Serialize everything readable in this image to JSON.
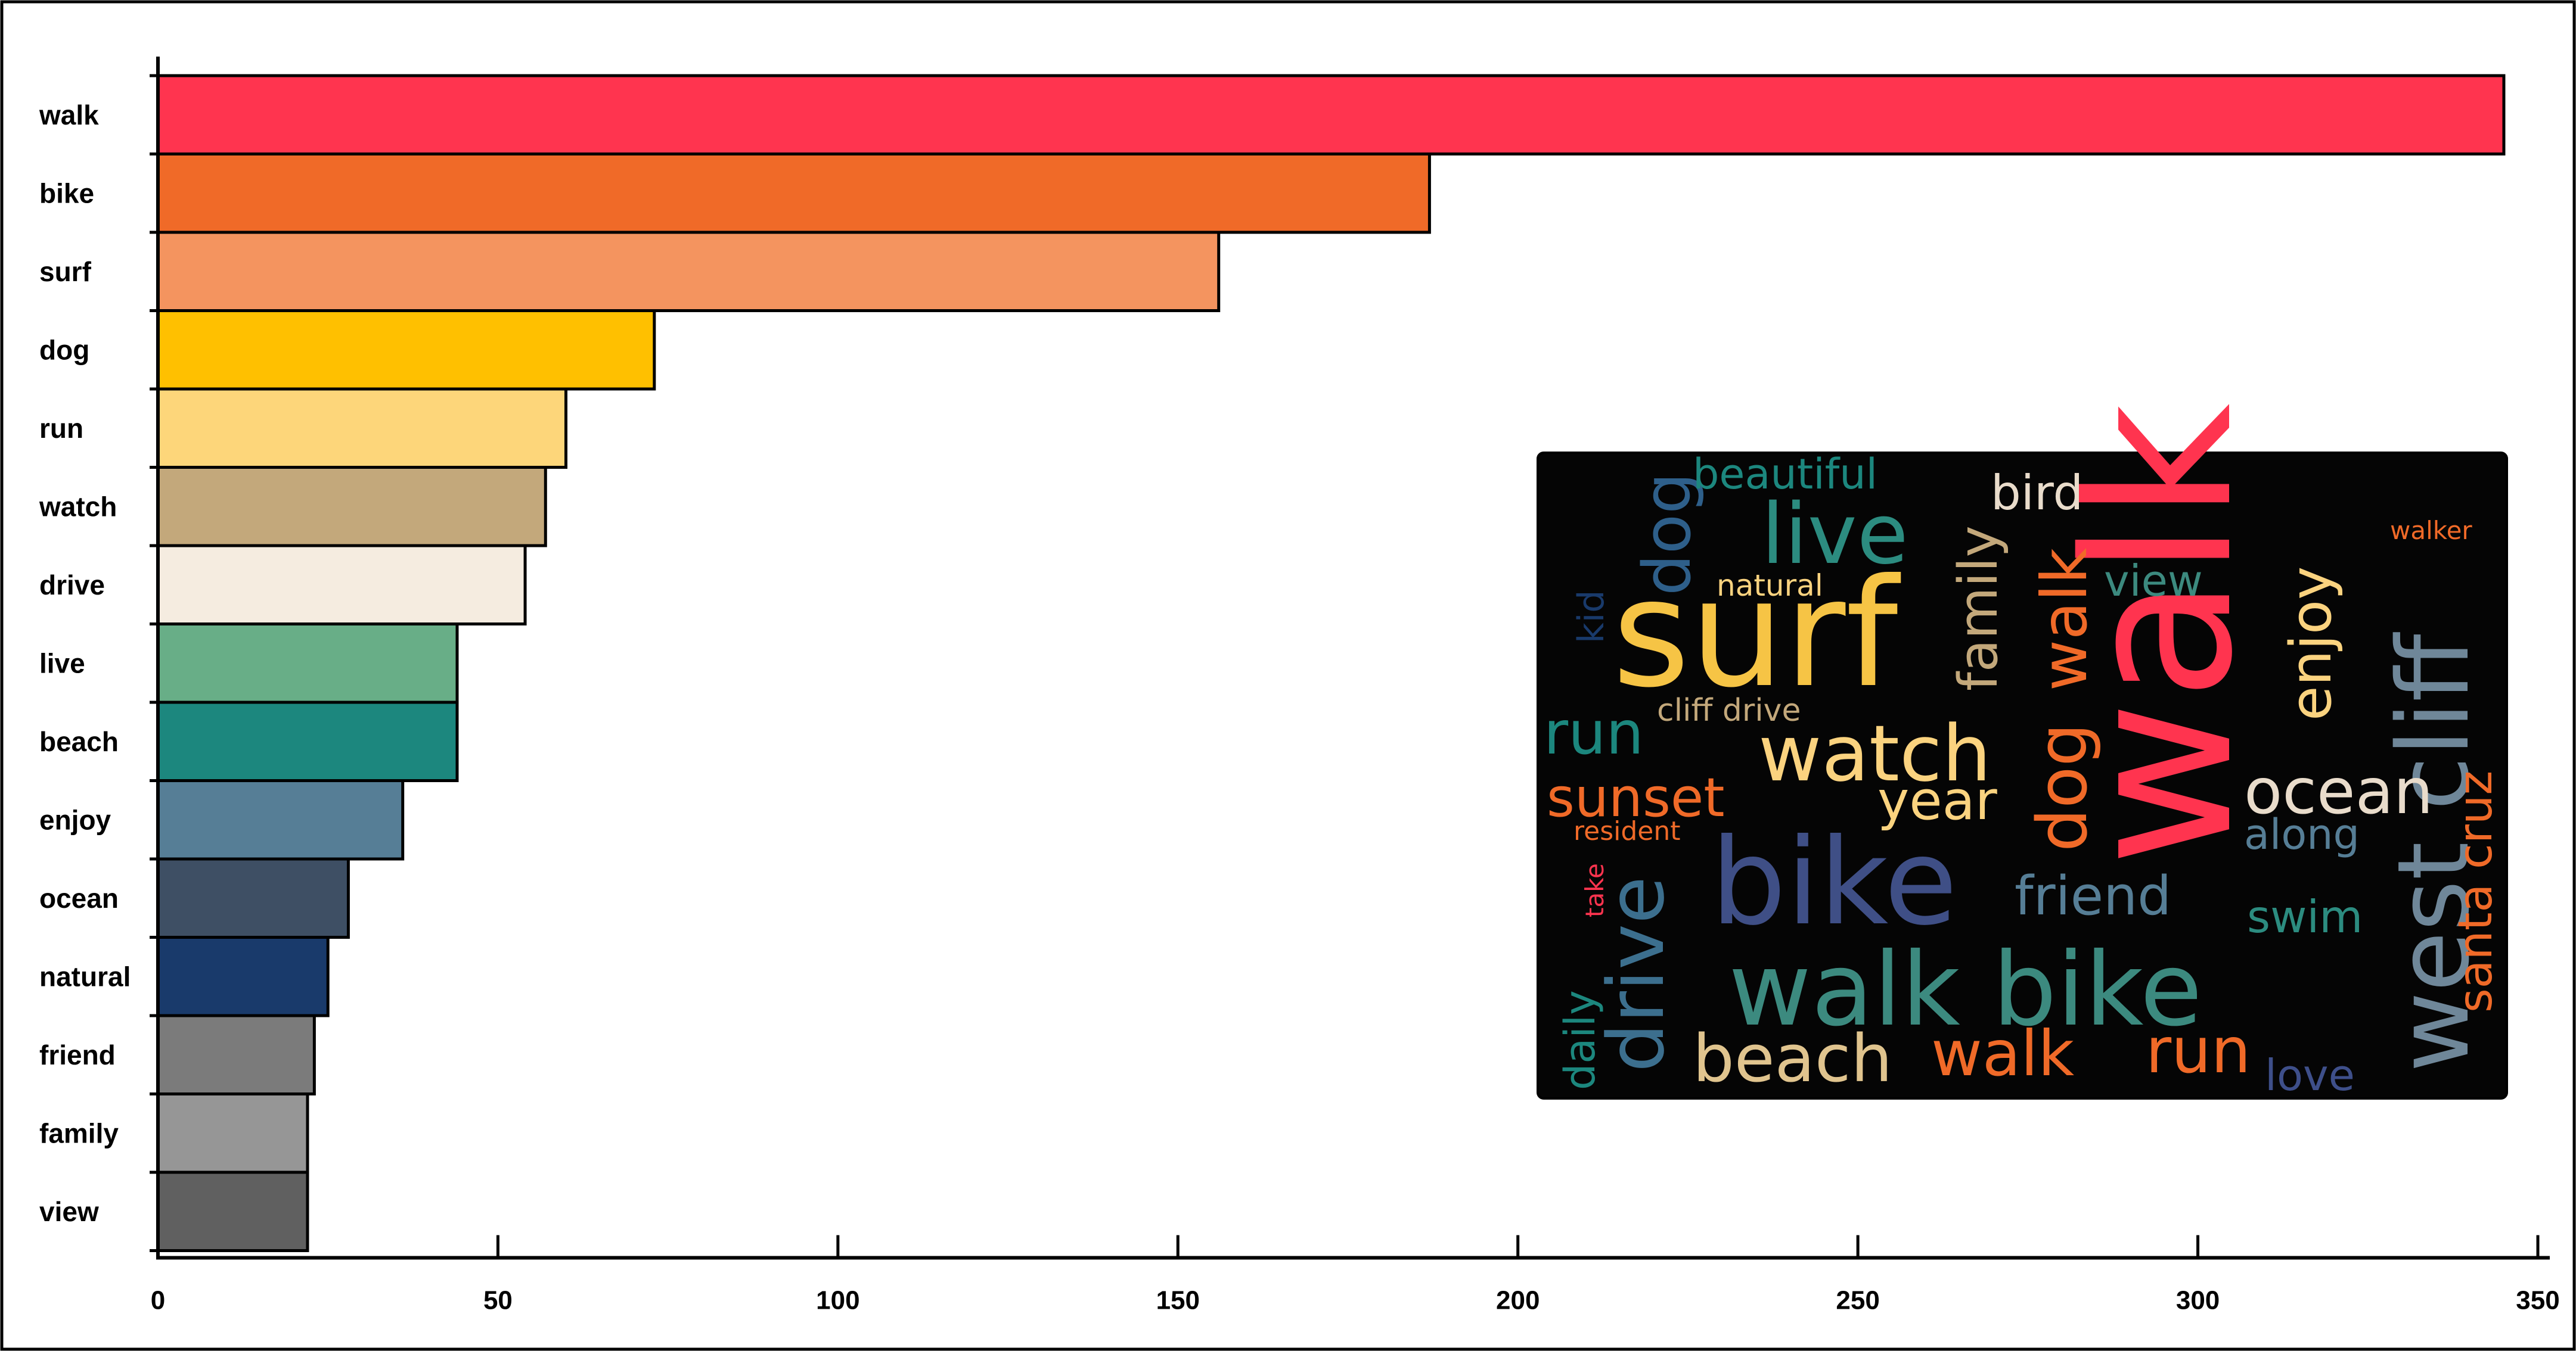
{
  "chart_data": {
    "type": "bar",
    "orientation": "horizontal",
    "title": "",
    "xlabel": "",
    "ylabel": "",
    "xlim": [
      0,
      350
    ],
    "x_ticks": [
      0,
      50,
      100,
      150,
      200,
      250,
      300,
      350
    ],
    "grid": false,
    "legend": "none",
    "categories": [
      "walk",
      "bike",
      "surf",
      "dog",
      "run",
      "watch",
      "drive",
      "live",
      "beach",
      "enjoy",
      "ocean",
      "natural",
      "friend",
      "family",
      "view"
    ],
    "values": [
      345,
      187,
      156,
      73,
      60,
      57,
      54,
      44,
      44,
      36,
      28,
      25,
      23,
      22,
      22
    ],
    "colors": [
      "#ff344f",
      "#f06a28",
      "#f4945f",
      "#ffc000",
      "#fdd67a",
      "#c3a87b",
      "#f5ece0",
      "#68ae87",
      "#1c877e",
      "#567e96",
      "#3e4f64",
      "#193a6b",
      "#7b7b7b",
      "#969696",
      "#606060"
    ]
  },
  "wordcloud": {
    "background": "#050505",
    "words": [
      {
        "text": "walk",
        "color": "#ff344f"
      },
      {
        "text": "surf",
        "color": "#f6c445"
      },
      {
        "text": "bike",
        "color": "#3f4f86"
      },
      {
        "text": "walk bike",
        "color": "#3c8a7f"
      },
      {
        "text": "west cliff",
        "color": "#6f8799"
      },
      {
        "text": "watch",
        "color": "#fbd37f"
      },
      {
        "text": "live",
        "color": "#2c8c80"
      },
      {
        "text": "dog",
        "color": "#2e5f8a"
      },
      {
        "text": "dog",
        "color": "#f06a28"
      },
      {
        "text": "walk",
        "color": "#f06a28"
      },
      {
        "text": "beautiful",
        "color": "#1c877e"
      },
      {
        "text": "family",
        "color": "#c3a87b"
      },
      {
        "text": "bird",
        "color": "#e9dccb"
      },
      {
        "text": "view",
        "color": "#3c8a7f"
      },
      {
        "text": "enjoy",
        "color": "#fbd37f"
      },
      {
        "text": "ocean",
        "color": "#e9dccb"
      },
      {
        "text": "santa cruz",
        "color": "#f06a28"
      },
      {
        "text": "run",
        "color": "#1c877e"
      },
      {
        "text": "sunset",
        "color": "#f06a28"
      },
      {
        "text": "year",
        "color": "#fbd37f"
      },
      {
        "text": "cliff drive",
        "color": "#c3a87b"
      },
      {
        "text": "natural",
        "color": "#fbd37f"
      },
      {
        "text": "kid",
        "color": "#193a6b"
      },
      {
        "text": "resident",
        "color": "#f06a28"
      },
      {
        "text": "drive",
        "color": "#3c6f8e"
      },
      {
        "text": "daily",
        "color": "#1c877e"
      },
      {
        "text": "beach",
        "color": "#e0c48e"
      },
      {
        "text": "walk",
        "color": "#f06a28"
      },
      {
        "text": "run",
        "color": "#f06a28"
      },
      {
        "text": "love",
        "color": "#3e4f8a"
      },
      {
        "text": "friend",
        "color": "#567e96"
      },
      {
        "text": "swim",
        "color": "#2c8c80"
      },
      {
        "text": "along",
        "color": "#567e96"
      },
      {
        "text": "walker",
        "color": "#f06a28"
      },
      {
        "text": "take",
        "color": "#ff344f"
      }
    ]
  }
}
